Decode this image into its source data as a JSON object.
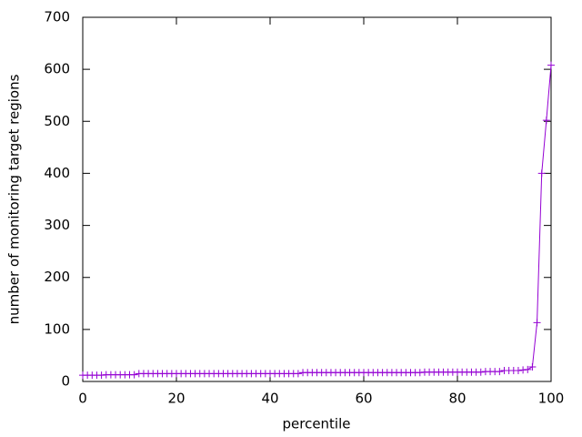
{
  "chart_data": {
    "type": "line",
    "xlabel": "percentile",
    "ylabel": "number of monitoring target regions",
    "x": [
      0,
      1,
      2,
      3,
      4,
      5,
      6,
      7,
      8,
      9,
      10,
      11,
      12,
      13,
      14,
      15,
      16,
      17,
      18,
      19,
      20,
      21,
      22,
      23,
      24,
      25,
      26,
      27,
      28,
      29,
      30,
      31,
      32,
      33,
      34,
      35,
      36,
      37,
      38,
      39,
      40,
      41,
      42,
      43,
      44,
      45,
      46,
      47,
      48,
      49,
      50,
      51,
      52,
      53,
      54,
      55,
      56,
      57,
      58,
      59,
      60,
      61,
      62,
      63,
      64,
      65,
      66,
      67,
      68,
      69,
      70,
      71,
      72,
      73,
      74,
      75,
      76,
      77,
      78,
      79,
      80,
      81,
      82,
      83,
      84,
      85,
      86,
      87,
      88,
      89,
      90,
      91,
      92,
      93,
      94,
      95,
      96,
      97,
      98,
      99,
      100
    ],
    "series": [
      {
        "color": "#9400d3",
        "values": [
          12,
          12,
          12,
          12,
          12,
          13,
          13,
          13,
          13,
          13,
          13,
          13,
          15,
          15,
          15,
          15,
          15,
          15,
          15,
          15,
          15,
          15,
          15,
          15,
          15,
          15,
          15,
          15,
          15,
          15,
          15,
          15,
          15,
          15,
          15,
          15,
          15,
          15,
          15,
          15,
          15,
          15,
          15,
          15,
          15,
          15,
          15,
          17,
          17,
          17,
          17,
          17,
          17,
          17,
          17,
          17,
          17,
          17,
          17,
          17,
          17,
          17,
          17,
          17,
          17,
          17,
          17,
          17,
          17,
          17,
          17,
          17,
          17,
          18,
          18,
          18,
          18,
          18,
          18,
          18,
          18,
          18,
          18,
          18,
          18,
          18,
          19,
          19,
          19,
          19,
          21,
          21,
          21,
          21,
          22,
          23,
          28,
          113,
          400,
          502,
          608
        ]
      }
    ],
    "xlim": [
      0,
      100
    ],
    "xticks": [
      0,
      20,
      40,
      60,
      80,
      100
    ],
    "ylim": [
      0,
      700
    ],
    "yticks": [
      0,
      100,
      200,
      300,
      400,
      500,
      600,
      700
    ]
  }
}
